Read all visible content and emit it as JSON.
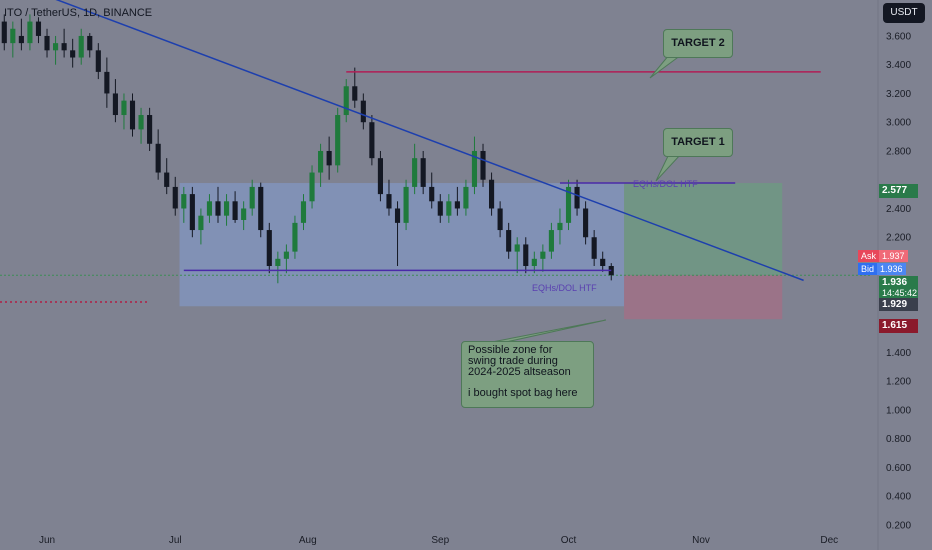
{
  "header": {
    "symbol": "ITO / TetherUS, 1D, BINANCE",
    "currency_button": "USDT"
  },
  "annotations": {
    "target2": "TARGET 2",
    "target1": "TARGET 1",
    "zone_lines": [
      "Possible zone for",
      "swing trade during",
      "2024-2025 altseason",
      "",
      "i bought spot bag here"
    ],
    "eqh_label_upper": "EQHs/DOL HTF",
    "eqh_label_lower": "EQHs/DOL HTF"
  },
  "price_scale": {
    "ask_label": "Ask",
    "ask_value": "1.937",
    "bid_label": "Bid",
    "bid_value": "1.936",
    "last_price": "1.936",
    "countdown": "14:45:42",
    "level_1929": "1.929",
    "level_2577": "2.577",
    "level_1615": "1.615"
  },
  "colors": {
    "background": "#7f8291",
    "candle_up": "#1f7a3c",
    "candle_down": "#141823",
    "trendline": "#1d3fae",
    "resistance": "#b01e56",
    "eqh_line": "#4a2aa8",
    "zone_fill": "#8296c2",
    "target_fill": "#6e9a82",
    "stop_fill": "#a46e86"
  },
  "chart_data": {
    "type": "candlestick",
    "title": "ITO / TetherUS, 1D, BINANCE",
    "x_tick_labels": [
      "Jun",
      "Jul",
      "Aug",
      "Sep",
      "Oct",
      "Nov",
      "Dec"
    ],
    "y_tick_labels": [
      "3.600",
      "3.400",
      "3.200",
      "3.000",
      "2.800",
      "2.400",
      "2.200",
      "1.400",
      "1.200",
      "1.000",
      "0.800",
      "0.600",
      "0.400",
      "0.200"
    ],
    "y_range": [
      0.15,
      3.85
    ],
    "x_range": [
      "2024-05-21",
      "2024-12-11"
    ],
    "candles": [
      {
        "date": "2024-05-22",
        "o": 3.7,
        "h": 3.75,
        "l": 3.5,
        "c": 3.55
      },
      {
        "date": "2024-05-24",
        "o": 3.55,
        "h": 3.7,
        "l": 3.45,
        "c": 3.65
      },
      {
        "date": "2024-05-26",
        "o": 3.6,
        "h": 3.72,
        "l": 3.5,
        "c": 3.55
      },
      {
        "date": "2024-05-28",
        "o": 3.55,
        "h": 3.75,
        "l": 3.5,
        "c": 3.7
      },
      {
        "date": "2024-05-30",
        "o": 3.7,
        "h": 3.73,
        "l": 3.55,
        "c": 3.6
      },
      {
        "date": "2024-06-01",
        "o": 3.6,
        "h": 3.65,
        "l": 3.45,
        "c": 3.5
      },
      {
        "date": "2024-06-03",
        "o": 3.5,
        "h": 3.6,
        "l": 3.4,
        "c": 3.55
      },
      {
        "date": "2024-06-05",
        "o": 3.55,
        "h": 3.65,
        "l": 3.45,
        "c": 3.5
      },
      {
        "date": "2024-06-07",
        "o": 3.5,
        "h": 3.58,
        "l": 3.38,
        "c": 3.45
      },
      {
        "date": "2024-06-09",
        "o": 3.45,
        "h": 3.65,
        "l": 3.4,
        "c": 3.6
      },
      {
        "date": "2024-06-11",
        "o": 3.6,
        "h": 3.62,
        "l": 3.45,
        "c": 3.5
      },
      {
        "date": "2024-06-13",
        "o": 3.5,
        "h": 3.55,
        "l": 3.3,
        "c": 3.35
      },
      {
        "date": "2024-06-15",
        "o": 3.35,
        "h": 3.45,
        "l": 3.1,
        "c": 3.2
      },
      {
        "date": "2024-06-17",
        "o": 3.2,
        "h": 3.3,
        "l": 3.0,
        "c": 3.05
      },
      {
        "date": "2024-06-19",
        "o": 3.05,
        "h": 3.2,
        "l": 2.95,
        "c": 3.15
      },
      {
        "date": "2024-06-21",
        "o": 3.15,
        "h": 3.2,
        "l": 2.9,
        "c": 2.95
      },
      {
        "date": "2024-06-23",
        "o": 2.95,
        "h": 3.1,
        "l": 2.85,
        "c": 3.05
      },
      {
        "date": "2024-06-25",
        "o": 3.05,
        "h": 3.1,
        "l": 2.8,
        "c": 2.85
      },
      {
        "date": "2024-06-27",
        "o": 2.85,
        "h": 2.95,
        "l": 2.6,
        "c": 2.65
      },
      {
        "date": "2024-06-29",
        "o": 2.65,
        "h": 2.75,
        "l": 2.5,
        "c": 2.55
      },
      {
        "date": "2024-07-01",
        "o": 2.55,
        "h": 2.62,
        "l": 2.35,
        "c": 2.4
      },
      {
        "date": "2024-07-03",
        "o": 2.4,
        "h": 2.55,
        "l": 2.3,
        "c": 2.5
      },
      {
        "date": "2024-07-05",
        "o": 2.5,
        "h": 2.55,
        "l": 2.2,
        "c": 2.25
      },
      {
        "date": "2024-07-07",
        "o": 2.25,
        "h": 2.4,
        "l": 2.15,
        "c": 2.35
      },
      {
        "date": "2024-07-09",
        "o": 2.35,
        "h": 2.5,
        "l": 2.3,
        "c": 2.45
      },
      {
        "date": "2024-07-11",
        "o": 2.45,
        "h": 2.55,
        "l": 2.3,
        "c": 2.35
      },
      {
        "date": "2024-07-13",
        "o": 2.35,
        "h": 2.5,
        "l": 2.28,
        "c": 2.45
      },
      {
        "date": "2024-07-15",
        "o": 2.45,
        "h": 2.52,
        "l": 2.3,
        "c": 2.32
      },
      {
        "date": "2024-07-17",
        "o": 2.32,
        "h": 2.45,
        "l": 2.25,
        "c": 2.4
      },
      {
        "date": "2024-07-19",
        "o": 2.4,
        "h": 2.6,
        "l": 2.35,
        "c": 2.55
      },
      {
        "date": "2024-07-21",
        "o": 2.55,
        "h": 2.58,
        "l": 2.2,
        "c": 2.25
      },
      {
        "date": "2024-07-23",
        "o": 2.25,
        "h": 2.3,
        "l": 1.95,
        "c": 2.0
      },
      {
        "date": "2024-07-25",
        "o": 2.0,
        "h": 2.1,
        "l": 1.88,
        "c": 2.05
      },
      {
        "date": "2024-07-27",
        "o": 2.05,
        "h": 2.15,
        "l": 1.95,
        "c": 2.1
      },
      {
        "date": "2024-07-29",
        "o": 2.1,
        "h": 2.35,
        "l": 2.05,
        "c": 2.3
      },
      {
        "date": "2024-07-31",
        "o": 2.3,
        "h": 2.5,
        "l": 2.25,
        "c": 2.45
      },
      {
        "date": "2024-08-02",
        "o": 2.45,
        "h": 2.7,
        "l": 2.4,
        "c": 2.65
      },
      {
        "date": "2024-08-04",
        "o": 2.65,
        "h": 2.85,
        "l": 2.55,
        "c": 2.8
      },
      {
        "date": "2024-08-06",
        "o": 2.8,
        "h": 2.9,
        "l": 2.6,
        "c": 2.7
      },
      {
        "date": "2024-08-08",
        "o": 2.7,
        "h": 3.1,
        "l": 2.65,
        "c": 3.05
      },
      {
        "date": "2024-08-10",
        "o": 3.05,
        "h": 3.3,
        "l": 3.0,
        "c": 3.25
      },
      {
        "date": "2024-08-12",
        "o": 3.25,
        "h": 3.38,
        "l": 3.1,
        "c": 3.15
      },
      {
        "date": "2024-08-14",
        "o": 3.15,
        "h": 3.2,
        "l": 2.95,
        "c": 3.0
      },
      {
        "date": "2024-08-16",
        "o": 3.0,
        "h": 3.05,
        "l": 2.7,
        "c": 2.75
      },
      {
        "date": "2024-08-18",
        "o": 2.75,
        "h": 2.8,
        "l": 2.45,
        "c": 2.5
      },
      {
        "date": "2024-08-20",
        "o": 2.5,
        "h": 2.6,
        "l": 2.35,
        "c": 2.4
      },
      {
        "date": "2024-08-22",
        "o": 2.4,
        "h": 2.45,
        "l": 2.0,
        "c": 2.3
      },
      {
        "date": "2024-08-24",
        "o": 2.3,
        "h": 2.6,
        "l": 2.25,
        "c": 2.55
      },
      {
        "date": "2024-08-26",
        "o": 2.55,
        "h": 2.85,
        "l": 2.5,
        "c": 2.75
      },
      {
        "date": "2024-08-28",
        "o": 2.75,
        "h": 2.8,
        "l": 2.5,
        "c": 2.55
      },
      {
        "date": "2024-08-30",
        "o": 2.55,
        "h": 2.65,
        "l": 2.4,
        "c": 2.45
      },
      {
        "date": "2024-09-01",
        "o": 2.45,
        "h": 2.5,
        "l": 2.3,
        "c": 2.35
      },
      {
        "date": "2024-09-03",
        "o": 2.35,
        "h": 2.5,
        "l": 2.3,
        "c": 2.45
      },
      {
        "date": "2024-09-05",
        "o": 2.45,
        "h": 2.55,
        "l": 2.35,
        "c": 2.4
      },
      {
        "date": "2024-09-07",
        "o": 2.4,
        "h": 2.6,
        "l": 2.35,
        "c": 2.55
      },
      {
        "date": "2024-09-09",
        "o": 2.55,
        "h": 2.9,
        "l": 2.5,
        "c": 2.8
      },
      {
        "date": "2024-09-11",
        "o": 2.8,
        "h": 2.85,
        "l": 2.55,
        "c": 2.6
      },
      {
        "date": "2024-09-13",
        "o": 2.6,
        "h": 2.65,
        "l": 2.35,
        "c": 2.4
      },
      {
        "date": "2024-09-15",
        "o": 2.4,
        "h": 2.45,
        "l": 2.2,
        "c": 2.25
      },
      {
        "date": "2024-09-17",
        "o": 2.25,
        "h": 2.3,
        "l": 2.05,
        "c": 2.1
      },
      {
        "date": "2024-09-19",
        "o": 2.1,
        "h": 2.2,
        "l": 1.95,
        "c": 2.15
      },
      {
        "date": "2024-09-21",
        "o": 2.15,
        "h": 2.2,
        "l": 1.95,
        "c": 2.0
      },
      {
        "date": "2024-09-23",
        "o": 2.0,
        "h": 2.1,
        "l": 1.95,
        "c": 2.05
      },
      {
        "date": "2024-09-25",
        "o": 2.05,
        "h": 2.15,
        "l": 1.96,
        "c": 2.1
      },
      {
        "date": "2024-09-27",
        "o": 2.1,
        "h": 2.3,
        "l": 2.05,
        "c": 2.25
      },
      {
        "date": "2024-09-29",
        "o": 2.25,
        "h": 2.4,
        "l": 2.15,
        "c": 2.3
      },
      {
        "date": "2024-10-01",
        "o": 2.3,
        "h": 2.6,
        "l": 2.25,
        "c": 2.55
      },
      {
        "date": "2024-10-03",
        "o": 2.55,
        "h": 2.6,
        "l": 2.35,
        "c": 2.4
      },
      {
        "date": "2024-10-05",
        "o": 2.4,
        "h": 2.45,
        "l": 2.15,
        "c": 2.2
      },
      {
        "date": "2024-10-07",
        "o": 2.2,
        "h": 2.25,
        "l": 2.0,
        "c": 2.05
      },
      {
        "date": "2024-10-09",
        "o": 2.05,
        "h": 2.1,
        "l": 1.96,
        "c": 2.0
      },
      {
        "date": "2024-10-11",
        "o": 2.0,
        "h": 2.02,
        "l": 1.9,
        "c": 1.936
      }
    ],
    "lines": [
      {
        "name": "descending trendline",
        "from": [
          "2024-05-30",
          3.9
        ],
        "to": [
          "2024-11-25",
          1.9
        ]
      },
      {
        "name": "resistance",
        "from": [
          "2024-08-10",
          3.35
        ],
        "to": [
          "2024-11-29",
          3.35
        ]
      },
      {
        "name": "EQHs/DOL HTF upper",
        "from": [
          "2024-09-29",
          2.577
        ],
        "to": [
          "2024-11-09",
          2.577
        ]
      },
      {
        "name": "EQHs/DOL HTF lower",
        "from": [
          "2024-07-03",
          1.97
        ],
        "to": [
          "2024-10-11",
          1.97
        ]
      },
      {
        "name": "support dotted",
        "from": [
          "2024-05-21",
          1.75
        ],
        "to": [
          "2024-06-25",
          1.75
        ]
      }
    ],
    "zones": [
      {
        "name": "range box",
        "x": [
          "2024-07-02",
          "2024-10-14"
        ],
        "y": [
          1.72,
          2.577
        ]
      },
      {
        "name": "target zone",
        "x": [
          "2024-10-14",
          "2024-11-20"
        ],
        "y": [
          1.936,
          2.577
        ]
      },
      {
        "name": "stop zone",
        "x": [
          "2024-10-14",
          "2024-11-20"
        ],
        "y": [
          1.63,
          1.936
        ]
      }
    ]
  }
}
